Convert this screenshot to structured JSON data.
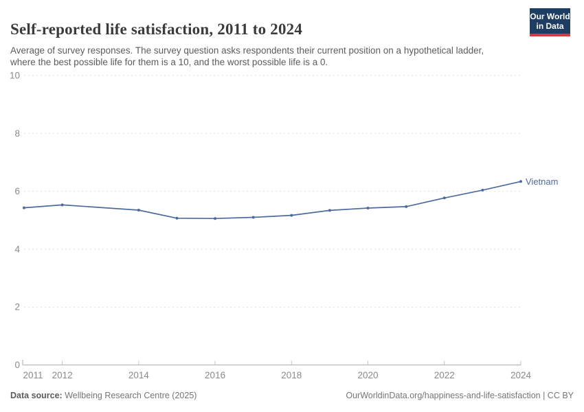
{
  "header": {
    "title": "Self-reported life satisfaction, 2011 to 2024",
    "subtitle": "Average of survey responses. The survey question asks respondents their current position on a hypothetical ladder, where the best possible life for them is a 10, and the worst possible life is a 0.",
    "logo": {
      "line1": "Our World",
      "line2": "in Data",
      "bg_color": "#1d3d63",
      "accent_color": "#dc3545"
    }
  },
  "chart_data": {
    "type": "line",
    "title": "Self-reported life satisfaction, 2011 to 2024",
    "xlabel": "",
    "ylabel": "",
    "xlim": [
      2011,
      2024
    ],
    "ylim": [
      0,
      10
    ],
    "x_ticks": [
      2011,
      2012,
      2014,
      2016,
      2018,
      2020,
      2022,
      2024
    ],
    "y_ticks": [
      0,
      2,
      4,
      6,
      8,
      10
    ],
    "grid": "horizontal-dashed",
    "legend": "end-of-line-label",
    "series": [
      {
        "name": "Vietnam",
        "color": "#4c6a9c",
        "missing_years": [
          2013
        ],
        "points": [
          {
            "year": 2011,
            "value": 5.43
          },
          {
            "year": 2012,
            "value": 5.53
          },
          {
            "year": 2014,
            "value": 5.35
          },
          {
            "year": 2015,
            "value": 5.07
          },
          {
            "year": 2016,
            "value": 5.06
          },
          {
            "year": 2017,
            "value": 5.1
          },
          {
            "year": 2018,
            "value": 5.17
          },
          {
            "year": 2019,
            "value": 5.34
          },
          {
            "year": 2020,
            "value": 5.42
          },
          {
            "year": 2021,
            "value": 5.47
          },
          {
            "year": 2022,
            "value": 5.77
          },
          {
            "year": 2023,
            "value": 6.04
          },
          {
            "year": 2024,
            "value": 6.34
          }
        ]
      }
    ],
    "style": {
      "gridline_color": "#dedede",
      "axis_color": "#ababab",
      "tick_color": "#c2c2c2",
      "tick_label_color": "#8a8a8a"
    }
  },
  "footer": {
    "source_label": "Data source:",
    "source_text": " Wellbeing Research Centre (2025)",
    "link_text": "OurWorldinData.org/happiness-and-life-satisfaction | CC BY"
  }
}
